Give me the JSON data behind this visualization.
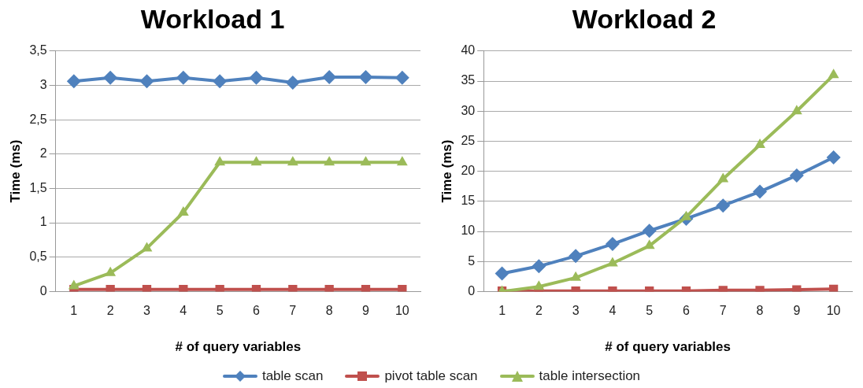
{
  "chart_data": [
    {
      "type": "line",
      "title": "Workload 1",
      "xlabel": "# of query variables",
      "ylabel": "Time (ms)",
      "categories": [
        "1",
        "2",
        "3",
        "4",
        "5",
        "6",
        "7",
        "8",
        "9",
        "10"
      ],
      "series": [
        {
          "name": "table scan",
          "color": "#4f81bd",
          "marker": "diamond",
          "values": [
            3.06,
            3.11,
            3.06,
            3.11,
            3.06,
            3.11,
            3.04,
            3.12,
            3.12,
            3.11
          ]
        },
        {
          "name": "pivot table scan",
          "color": "#c0504d",
          "marker": "square",
          "values": [
            0.03,
            0.03,
            0.03,
            0.03,
            0.03,
            0.03,
            0.03,
            0.03,
            0.03,
            0.03
          ]
        },
        {
          "name": "table intersection",
          "color": "#9bbb59",
          "marker": "triangle",
          "values": [
            0.08,
            0.27,
            0.63,
            1.15,
            1.88,
            1.88,
            1.88,
            1.88,
            1.88,
            1.88
          ]
        }
      ],
      "ylim": [
        0,
        3.5
      ],
      "yticks": [
        0,
        {
          "value": 0.5,
          "label": "0,5"
        },
        1,
        {
          "value": 1.5,
          "label": "1,5"
        },
        2,
        {
          "value": 2.5,
          "label": "2,5"
        },
        3,
        {
          "value": 3.5,
          "label": "3,5"
        }
      ],
      "grid": "y",
      "legend": "bottom",
      "line_style": "solid"
    },
    {
      "type": "line",
      "title": "Workload 2",
      "xlabel": "# of query variables",
      "ylabel": "Time (ms)",
      "categories": [
        "1",
        "2",
        "3",
        "4",
        "5",
        "6",
        "7",
        "8",
        "9",
        "10"
      ],
      "series": [
        {
          "color": "#4f81bd",
          "marker": "diamond",
          "values": [
            3.0,
            4.2,
            5.9,
            7.9,
            10.1,
            12.1,
            14.3,
            16.6,
            19.3,
            22.3
          ]
        },
        {
          "color": "#c0504d",
          "marker": "square",
          "values": [
            0.1,
            0.1,
            0.1,
            0.1,
            0.1,
            0.1,
            0.2,
            0.2,
            0.3,
            0.4
          ]
        },
        {
          "color": "#9bbb59",
          "marker": "triangle",
          "values": [
            0,
            0.8,
            2.3,
            4.7,
            7.6,
            12.4,
            18.7,
            24.4,
            30,
            36
          ]
        }
      ],
      "ylim": [
        0,
        40
      ],
      "yticks": [
        0,
        5,
        10,
        15,
        20,
        25,
        30,
        35,
        40
      ],
      "grid": "y",
      "line_style": "solid"
    }
  ]
}
